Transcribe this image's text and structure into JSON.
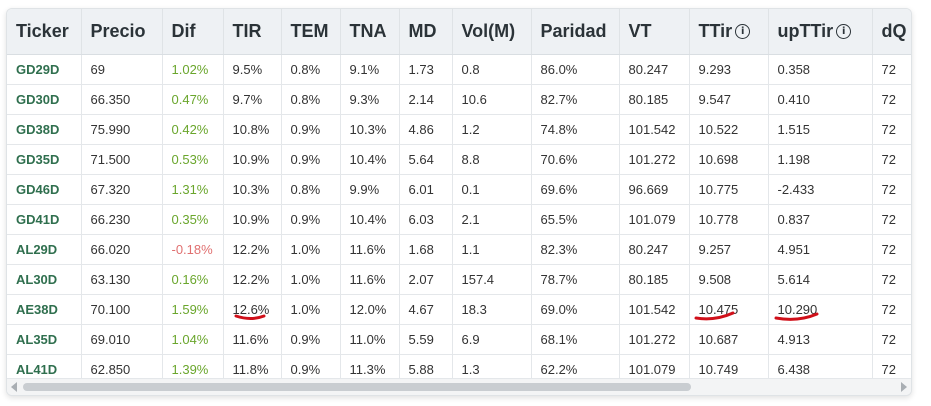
{
  "table": {
    "headers": [
      "Ticker",
      "Precio",
      "Dif",
      "TIR",
      "TEM",
      "TNA",
      "MD",
      "Vol(M)",
      "Paridad",
      "VT",
      "TTir",
      "upTTir",
      "dQ"
    ],
    "header_info_icons": [
      "TTir",
      "upTTir"
    ],
    "rows": [
      {
        "ticker": "GD29D",
        "precio": "69",
        "dif": "1.02%",
        "dif_sign": "pos",
        "tir": "9.5%",
        "tem": "0.8%",
        "tna": "9.1%",
        "md": "1.73",
        "vol": "0.8",
        "paridad": "86.0%",
        "vt": "80.247",
        "ttir": "9.293",
        "upttir": "0.358",
        "dq": "72"
      },
      {
        "ticker": "GD30D",
        "precio": "66.350",
        "dif": "0.47%",
        "dif_sign": "pos",
        "tir": "9.7%",
        "tem": "0.8%",
        "tna": "9.3%",
        "md": "2.14",
        "vol": "10.6",
        "paridad": "82.7%",
        "vt": "80.185",
        "ttir": "9.547",
        "upttir": "0.410",
        "dq": "72"
      },
      {
        "ticker": "GD38D",
        "precio": "75.990",
        "dif": "0.42%",
        "dif_sign": "pos",
        "tir": "10.8%",
        "tem": "0.9%",
        "tna": "10.3%",
        "md": "4.86",
        "vol": "1.2",
        "paridad": "74.8%",
        "vt": "101.542",
        "ttir": "10.522",
        "upttir": "1.515",
        "dq": "72"
      },
      {
        "ticker": "GD35D",
        "precio": "71.500",
        "dif": "0.53%",
        "dif_sign": "pos",
        "tir": "10.9%",
        "tem": "0.9%",
        "tna": "10.4%",
        "md": "5.64",
        "vol": "8.8",
        "paridad": "70.6%",
        "vt": "101.272",
        "ttir": "10.698",
        "upttir": "1.198",
        "dq": "72"
      },
      {
        "ticker": "GD46D",
        "precio": "67.320",
        "dif": "1.31%",
        "dif_sign": "pos",
        "tir": "10.3%",
        "tem": "0.8%",
        "tna": "9.9%",
        "md": "6.01",
        "vol": "0.1",
        "paridad": "69.6%",
        "vt": "96.669",
        "ttir": "10.775",
        "upttir": "-2.433",
        "dq": "72"
      },
      {
        "ticker": "GD41D",
        "precio": "66.230",
        "dif": "0.35%",
        "dif_sign": "pos",
        "tir": "10.9%",
        "tem": "0.9%",
        "tna": "10.4%",
        "md": "6.03",
        "vol": "2.1",
        "paridad": "65.5%",
        "vt": "101.079",
        "ttir": "10.778",
        "upttir": "0.837",
        "dq": "72"
      },
      {
        "ticker": "AL29D",
        "precio": "66.020",
        "dif": "-0.18%",
        "dif_sign": "neg",
        "tir": "12.2%",
        "tem": "1.0%",
        "tna": "11.6%",
        "md": "1.68",
        "vol": "1.1",
        "paridad": "82.3%",
        "vt": "80.247",
        "ttir": "9.257",
        "upttir": "4.951",
        "dq": "72"
      },
      {
        "ticker": "AL30D",
        "precio": "63.130",
        "dif": "0.16%",
        "dif_sign": "pos",
        "tir": "12.2%",
        "tem": "1.0%",
        "tna": "11.6%",
        "md": "2.07",
        "vol": "157.4",
        "paridad": "78.7%",
        "vt": "80.185",
        "ttir": "9.508",
        "upttir": "5.614",
        "dq": "72"
      },
      {
        "ticker": "AE38D",
        "precio": "70.100",
        "dif": "1.59%",
        "dif_sign": "pos",
        "tir": "12.6%",
        "tem": "1.0%",
        "tna": "12.0%",
        "md": "4.67",
        "vol": "18.3",
        "paridad": "69.0%",
        "vt": "101.542",
        "ttir": "10.475",
        "upttir": "10.290",
        "dq": "72"
      },
      {
        "ticker": "AL35D",
        "precio": "69.010",
        "dif": "1.04%",
        "dif_sign": "pos",
        "tir": "11.6%",
        "tem": "0.9%",
        "tna": "11.0%",
        "md": "5.59",
        "vol": "6.9",
        "paridad": "68.1%",
        "vt": "101.272",
        "ttir": "10.687",
        "upttir": "4.913",
        "dq": "72"
      },
      {
        "ticker": "AL41D",
        "precio": "62.850",
        "dif": "1.39%",
        "dif_sign": "pos",
        "tir": "11.8%",
        "tem": "0.9%",
        "tna": "11.3%",
        "md": "5.88",
        "vol": "1.3",
        "paridad": "62.2%",
        "vt": "101.079",
        "ttir": "10.749",
        "upttir": "6.438",
        "dq": "72"
      }
    ]
  },
  "annotations": {
    "underlined_cells": [
      "AE38D.tir",
      "AE38D.ttir",
      "AE38D.upttir"
    ],
    "underline_color": "#d0101a"
  },
  "colors": {
    "ticker": "#2f6f4e",
    "positive": "#6aa62c",
    "negative": "#e07070",
    "header_bg": "#eef1f4"
  },
  "info_icon_glyph": "i"
}
